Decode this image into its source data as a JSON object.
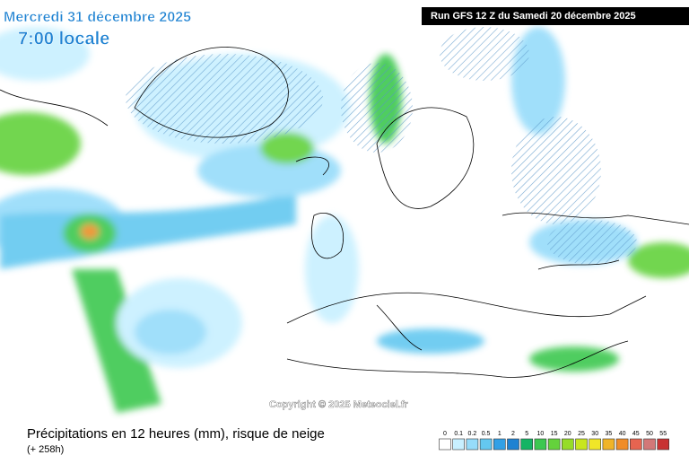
{
  "header": {
    "date": "Mercredi 31 décembre 2025",
    "time": "7:00 locale",
    "run": "Run GFS 12 Z du Samedi 20 décembre 2025"
  },
  "copyright": "Copyright © 2025 Meteociel.fr",
  "footer": {
    "title": "Précipitations en 12 heures (mm), risque de neige",
    "subtitle": "(+ 258h)"
  },
  "legend": {
    "labels": [
      0,
      0.1,
      0.2,
      0.5,
      1,
      2,
      5,
      10,
      15,
      20,
      25,
      30,
      35,
      40,
      45,
      50,
      55
    ],
    "colors": [
      "#ffffff",
      "#c8f0ff",
      "#96dcfa",
      "#64c8f0",
      "#32a0e6",
      "#1e82d2",
      "#14b464",
      "#3cc850",
      "#64d23c",
      "#96dc28",
      "#c8e61e",
      "#f0e628",
      "#f0b428",
      "#f08c28",
      "#e66450",
      "#d27878",
      "#c83232"
    ]
  }
}
